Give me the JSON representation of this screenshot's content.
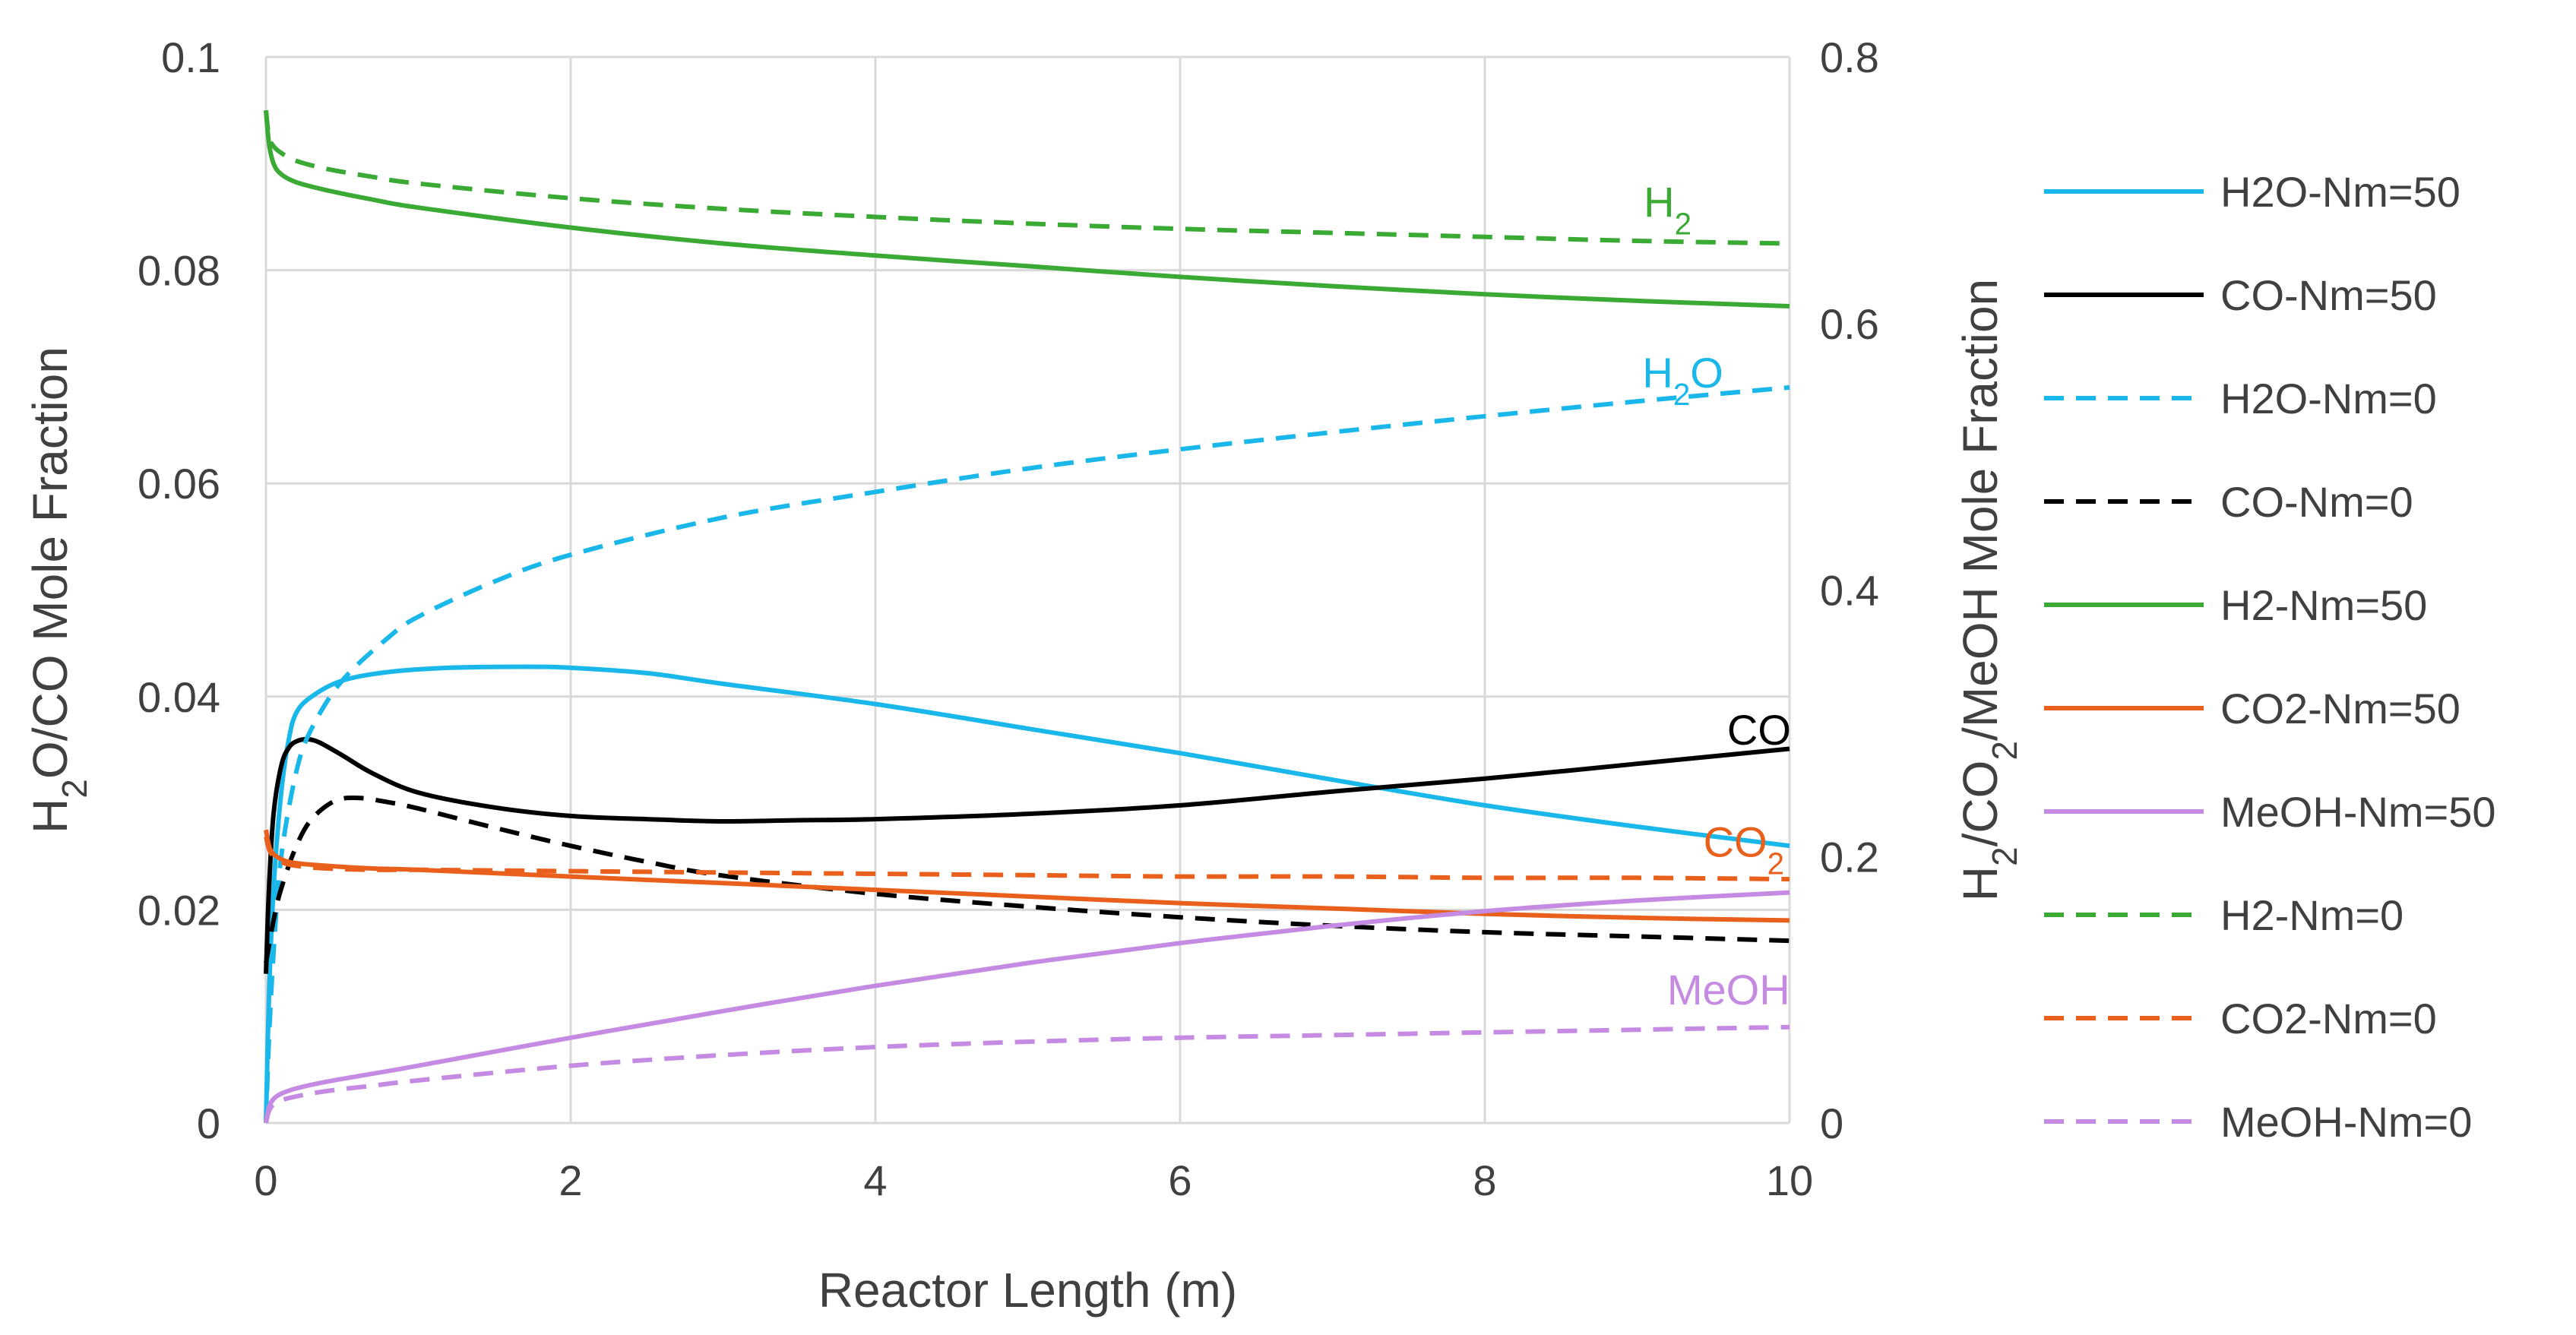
{
  "chart_data": {
    "type": "line",
    "title": "",
    "xlabel": "Reactor Length (m)",
    "ylabel_left": [
      "H",
      "2",
      "O/CO  Mole Fraction"
    ],
    "ylabel_right": [
      "H",
      "2",
      "/CO",
      "2",
      "/MeOH Mole Fraction"
    ],
    "xlim": [
      0,
      10
    ],
    "ylim_left": [
      0,
      0.1
    ],
    "ylim_right": [
      0,
      0.8
    ],
    "x_ticks": [
      "0",
      "2",
      "4",
      "6",
      "8",
      "10"
    ],
    "y_left_ticks": [
      "0",
      "0.02",
      "0.04",
      "0.06",
      "0.08",
      "0.1"
    ],
    "y_right_ticks": [
      "0",
      "0.2",
      "0.4",
      "0.6",
      "0.8"
    ],
    "grid": true,
    "legend_position": "right",
    "series": [
      {
        "name": "H2O-Nm=50",
        "axis": "left",
        "color": "#1ab7ea",
        "dash": "solid",
        "x": [
          0,
          0.02,
          0.05,
          0.1,
          0.15,
          0.2,
          0.3,
          0.5,
          0.8,
          1.2,
          1.7,
          2.0,
          2.5,
          3,
          4,
          5,
          6,
          7,
          8,
          9,
          10
        ],
        "y": [
          0.0,
          0.012,
          0.022,
          0.031,
          0.036,
          0.0385,
          0.04,
          0.0415,
          0.0423,
          0.0427,
          0.0428,
          0.0427,
          0.0422,
          0.0412,
          0.0393,
          0.037,
          0.0347,
          0.0322,
          0.0298,
          0.0278,
          0.026
        ]
      },
      {
        "name": "CO-Nm=50",
        "axis": "left",
        "color": "#000000",
        "dash": "solid",
        "x": [
          0,
          0.02,
          0.05,
          0.1,
          0.15,
          0.2,
          0.27,
          0.35,
          0.5,
          0.7,
          1,
          1.5,
          2,
          2.5,
          3,
          3.5,
          4,
          5,
          6,
          7,
          8,
          9,
          10
        ],
        "y": [
          0.014,
          0.022,
          0.029,
          0.0335,
          0.0352,
          0.0358,
          0.036,
          0.0357,
          0.0345,
          0.0328,
          0.031,
          0.0296,
          0.0288,
          0.0285,
          0.0283,
          0.0284,
          0.0285,
          0.029,
          0.0298,
          0.0311,
          0.0323,
          0.0337,
          0.0351
        ]
      },
      {
        "name": "H2O-Nm=0",
        "axis": "left",
        "color": "#1ab7ea",
        "dash": "dashed",
        "x": [
          0,
          0.02,
          0.05,
          0.1,
          0.2,
          0.3,
          0.5,
          0.8,
          1,
          1.5,
          2,
          3,
          4,
          5,
          6,
          7,
          8,
          9,
          10
        ],
        "y": [
          0.0,
          0.008,
          0.016,
          0.025,
          0.033,
          0.037,
          0.0415,
          0.0455,
          0.0475,
          0.0508,
          0.0533,
          0.0568,
          0.0592,
          0.0614,
          0.0632,
          0.0648,
          0.0663,
          0.0677,
          0.069
        ]
      },
      {
        "name": "CO-Nm=0",
        "axis": "left",
        "color": "#000000",
        "dash": "dashed",
        "x": [
          0,
          0.05,
          0.1,
          0.2,
          0.3,
          0.45,
          0.6,
          0.8,
          1,
          1.5,
          2,
          2.5,
          3,
          4,
          5,
          6,
          7,
          8,
          9,
          10
        ],
        "y": [
          0.015,
          0.019,
          0.022,
          0.026,
          0.0285,
          0.0302,
          0.0305,
          0.0301,
          0.0295,
          0.0277,
          0.026,
          0.0245,
          0.0232,
          0.0215,
          0.0203,
          0.0193,
          0.0185,
          0.0179,
          0.0175,
          0.0171
        ]
      },
      {
        "name": "H2-Nm=50",
        "axis": "right",
        "color": "#3aaa35",
        "dash": "solid",
        "x": [
          0,
          0.02,
          0.05,
          0.1,
          0.2,
          0.4,
          0.7,
          1,
          2,
          3,
          4,
          5,
          6,
          7,
          8,
          9,
          10
        ],
        "y": [
          0.76,
          0.735,
          0.72,
          0.712,
          0.706,
          0.7,
          0.693,
          0.687,
          0.672,
          0.66,
          0.651,
          0.643,
          0.635,
          0.628,
          0.622,
          0.617,
          0.613
        ]
      },
      {
        "name": "CO2-Nm=50",
        "axis": "right",
        "color": "#e8601c",
        "dash": "solid",
        "x": [
          0,
          0.03,
          0.1,
          0.2,
          0.4,
          0.7,
          1,
          2,
          3,
          4,
          5,
          6,
          7,
          8,
          9,
          10
        ],
        "y": [
          0.22,
          0.205,
          0.198,
          0.195,
          0.193,
          0.191,
          0.19,
          0.185,
          0.18,
          0.175,
          0.17,
          0.165,
          0.161,
          0.157,
          0.154,
          0.152
        ]
      },
      {
        "name": "MeOH-Nm=50",
        "axis": "right",
        "color": "#c58be2",
        "dash": "solid",
        "x": [
          0,
          0.02,
          0.05,
          0.1,
          0.2,
          0.4,
          0.7,
          1,
          2,
          3,
          4,
          5,
          6,
          7,
          8,
          9,
          10
        ],
        "y": [
          0.0,
          0.012,
          0.018,
          0.022,
          0.026,
          0.031,
          0.037,
          0.043,
          0.064,
          0.084,
          0.103,
          0.12,
          0.135,
          0.148,
          0.159,
          0.167,
          0.173
        ]
      },
      {
        "name": "H2-Nm=0",
        "axis": "right",
        "color": "#3aaa35",
        "dash": "dashed",
        "x": [
          0,
          0.02,
          0.05,
          0.1,
          0.2,
          0.4,
          0.7,
          1,
          2,
          3,
          4,
          5,
          6,
          7,
          8,
          9,
          10
        ],
        "y": [
          0.76,
          0.74,
          0.733,
          0.728,
          0.722,
          0.716,
          0.71,
          0.705,
          0.694,
          0.686,
          0.68,
          0.675,
          0.671,
          0.668,
          0.665,
          0.662,
          0.66
        ]
      },
      {
        "name": "CO2-Nm=0",
        "axis": "right",
        "color": "#e8601c",
        "dash": "dashed",
        "x": [
          0,
          0.03,
          0.1,
          0.2,
          0.4,
          0.7,
          1,
          2,
          3,
          4,
          5,
          6,
          7,
          8,
          9,
          10
        ],
        "y": [
          0.215,
          0.203,
          0.196,
          0.193,
          0.191,
          0.19,
          0.19,
          0.189,
          0.188,
          0.187,
          0.186,
          0.185,
          0.185,
          0.184,
          0.184,
          0.183
        ]
      },
      {
        "name": "MeOH-Nm=0",
        "axis": "right",
        "color": "#c58be2",
        "dash": "dashed",
        "x": [
          0,
          0.02,
          0.05,
          0.1,
          0.2,
          0.4,
          0.7,
          1,
          2,
          3,
          4,
          5,
          6,
          7,
          8,
          9,
          10
        ],
        "y": [
          0.0,
          0.009,
          0.014,
          0.017,
          0.02,
          0.024,
          0.028,
          0.032,
          0.043,
          0.051,
          0.057,
          0.061,
          0.064,
          0.066,
          0.068,
          0.07,
          0.072
        ]
      }
    ],
    "annotations": [
      {
        "label": [
          "H",
          "2"
        ],
        "color": "#3aaa35",
        "x": 9.2,
        "y_right": 0.68
      },
      {
        "label": [
          "H",
          "2",
          "O"
        ],
        "color": "#1ab7ea",
        "x": 9.3,
        "y_left": 0.069
      },
      {
        "label": [
          "CO"
        ],
        "color": "#000000",
        "x": 9.8,
        "y_left": 0.0355
      },
      {
        "label": [
          "CO",
          "2"
        ],
        "color": "#e8601c",
        "x": 9.7,
        "y_right": 0.2
      },
      {
        "label": [
          "MeOH"
        ],
        "color": "#c58be2",
        "x": 9.6,
        "y_right": 0.089
      }
    ]
  }
}
